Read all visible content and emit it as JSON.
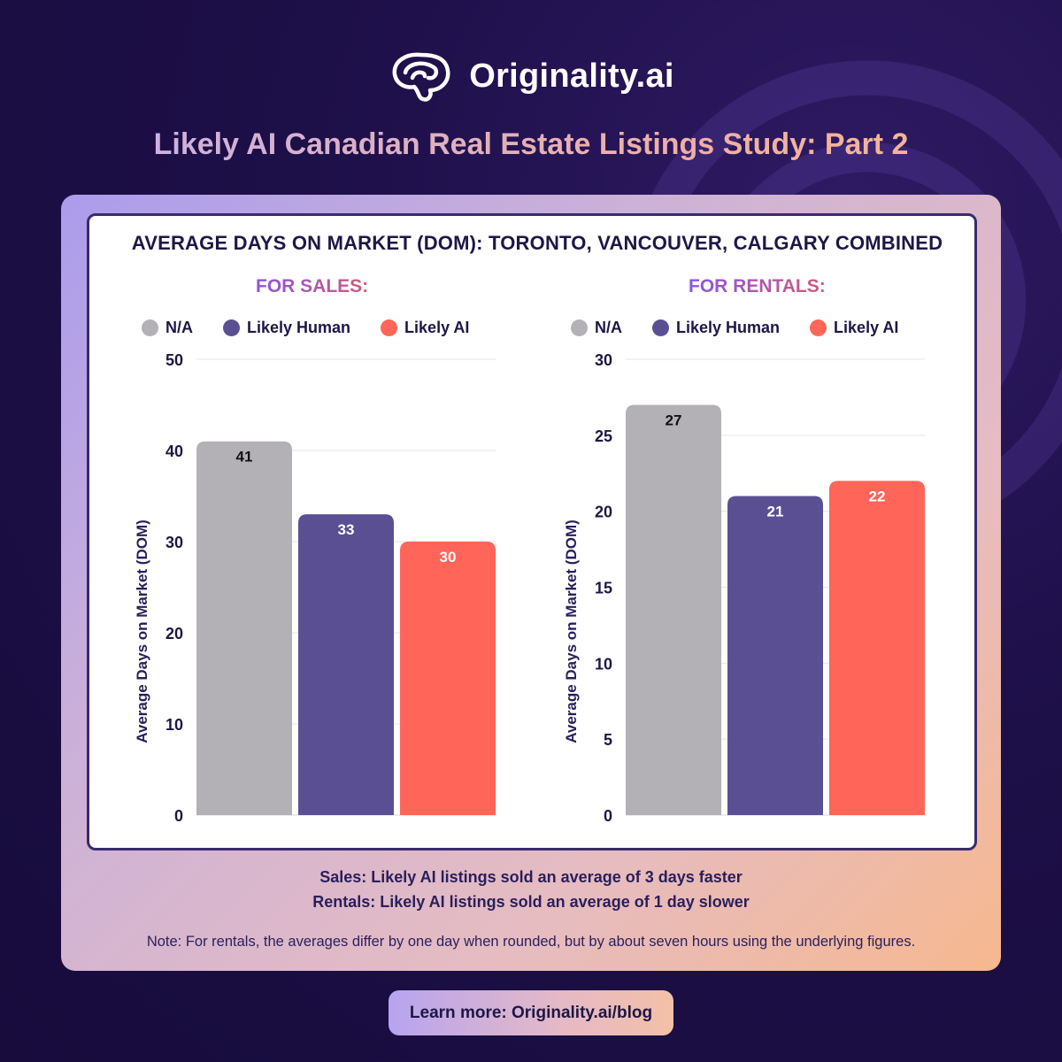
{
  "brand": {
    "name": "Originality.ai"
  },
  "study_title": "Likely AI Canadian Real Estate Listings Study: Part 2",
  "chart_title": "AVERAGE DAYS ON MARKET (DOM): TORONTO, VANCOUVER, CALGARY COMBINED",
  "colors": {
    "na": "#b4b1b6",
    "likely_human": "#5b4f94",
    "likely_ai": "#ff6558"
  },
  "chart_data": [
    {
      "type": "bar",
      "title": "FOR SALES:",
      "ylabel": "Average Days on Market (DOM)",
      "ylim": [
        0,
        50
      ],
      "yticks": [
        0,
        10,
        20,
        30,
        40,
        50
      ],
      "grid": true,
      "legend": "top",
      "categories": [
        "N/A",
        "Likely Human",
        "Likely AI"
      ],
      "values": [
        41,
        33,
        30
      ],
      "data_labels": [
        "41",
        "33",
        "30"
      ]
    },
    {
      "type": "bar",
      "title": "FOR RENTALS:",
      "ylabel": "Average Days on Market (DOM)",
      "ylim": [
        0,
        30
      ],
      "yticks": [
        0,
        5,
        10,
        15,
        20,
        25,
        30
      ],
      "grid": true,
      "legend": "top",
      "categories": [
        "N/A",
        "Likely Human",
        "Likely AI"
      ],
      "values": [
        27,
        21,
        22
      ],
      "data_labels": [
        "27",
        "21",
        "22"
      ]
    }
  ],
  "summary": {
    "sales": "Sales: Likely AI listings sold an average of 3 days faster",
    "rentals": "Rentals: Likely AI listings sold an average of 1 day slower"
  },
  "note": "Note: For rentals, the averages differ by one day when rounded, but by about seven hours using the underlying figures.",
  "cta": "Learn more: Originality.ai/blog"
}
